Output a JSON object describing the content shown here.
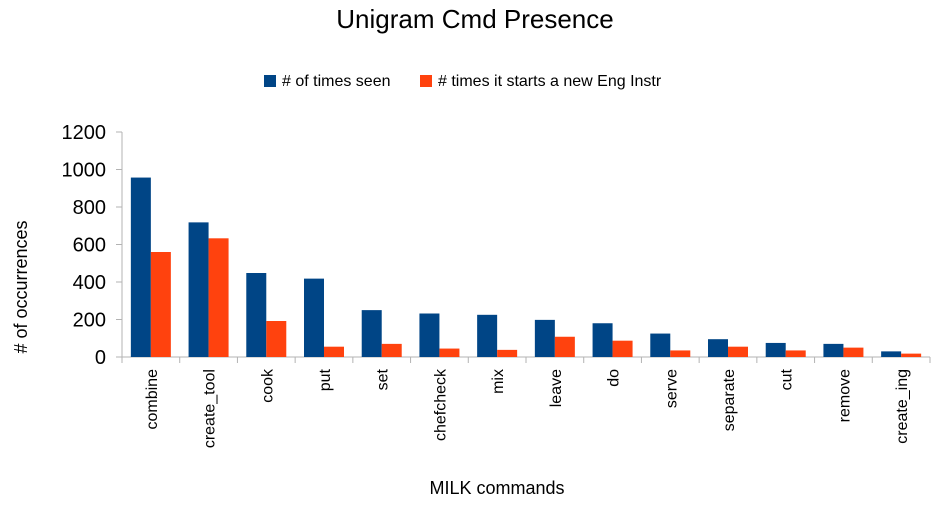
{
  "chart_data": {
    "type": "bar",
    "title": "Unigram Cmd Presence",
    "xlabel": "MILK commands",
    "ylabel": "# of occurrences",
    "ylim": [
      0,
      1200
    ],
    "yticks": [
      0,
      200,
      400,
      600,
      800,
      1000,
      1200
    ],
    "grid": false,
    "legend_position": "top",
    "categories": [
      "combine",
      "create_tool",
      "cook",
      "put",
      "set",
      "chefcheck",
      "mix",
      "leave",
      "do",
      "serve",
      "separate",
      "cut",
      "remove",
      "create_ing"
    ],
    "series": [
      {
        "name": "# of times seen",
        "color": "#004586",
        "values": [
          957,
          718,
          448,
          418,
          250,
          232,
          225,
          198,
          180,
          125,
          95,
          75,
          70,
          30
        ]
      },
      {
        "name": "# times it starts a new Eng Instr",
        "color": "#ff420e",
        "values": [
          560,
          633,
          192,
          55,
          70,
          45,
          38,
          108,
          87,
          35,
          55,
          35,
          50,
          18
        ]
      }
    ]
  }
}
